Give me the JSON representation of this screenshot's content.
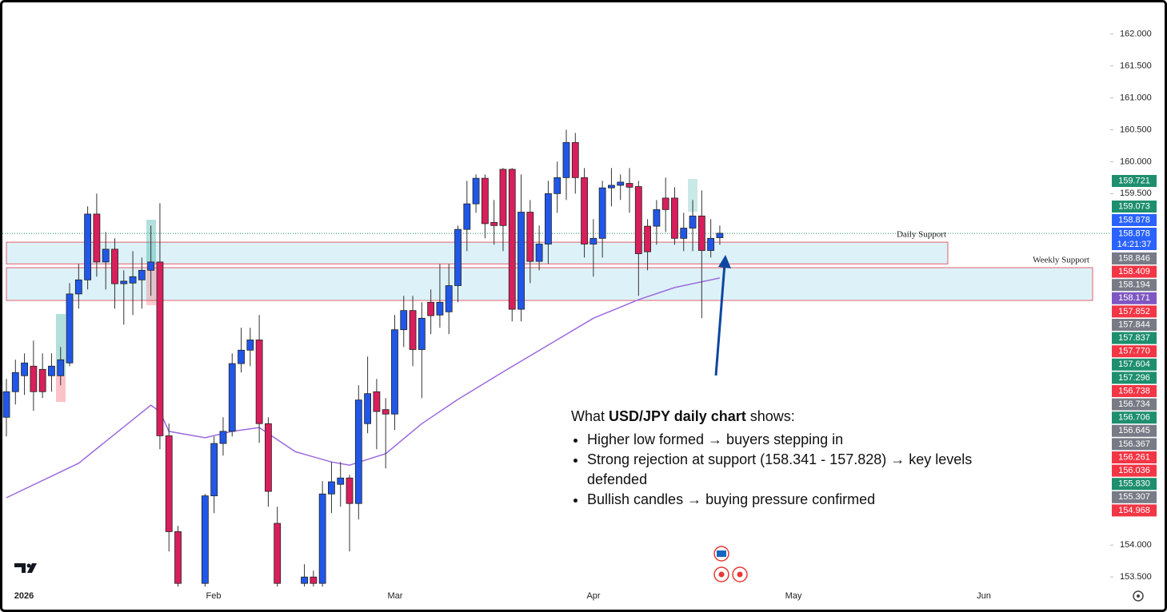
{
  "chart_data": {
    "type": "candlestick",
    "up_color": "#2157e8",
    "down_color": "#d81f5b",
    "ylim": [
      153.34,
      162.53
    ],
    "yticks": [
      {
        "value": 162,
        "label": "162.000"
      },
      {
        "value": 161.5,
        "label": "161.500"
      },
      {
        "value": 161,
        "label": "161.000"
      },
      {
        "value": 160.5,
        "label": "160.500"
      },
      {
        "value": 160,
        "label": "160.000"
      },
      {
        "value": 159.5,
        "label": "159.500"
      },
      {
        "value": 154,
        "label": "154.000"
      },
      {
        "value": 153.5,
        "label": "153.500"
      }
    ],
    "x_labels": [
      "2026",
      "Feb",
      "Mar",
      "Apr",
      "May",
      "Jun"
    ],
    "open": [
      156.0,
      156.4,
      156.65,
      156.8,
      156.75,
      156.65,
      156.65,
      156.85,
      157.93,
      158.15,
      159.18,
      158.43,
      158.63,
      158.09,
      158.1,
      158.15,
      158.3,
      158.43,
      155.71,
      154.21,
      null,
      null,
      153.4,
      154.77,
      155.59,
      155.78,
      156.84,
      157.05,
      157.21,
      155.9,
      154.34,
      null,
      null,
      153.4,
      153.5,
      153.4,
      154.8,
      154.95,
      155.05,
      154.65,
      155.9,
      156.4,
      156.12,
      156.05,
      157.37,
      157.67,
      157.06,
      157.8,
      157.6,
      157.65,
      158.06,
      158.94,
      159.34,
      159.74,
      159.05,
      159.88,
      159.88,
      157.69,
      159.21,
      158.44,
      158.71,
      159.5,
      159.75,
      160.3,
      159.75,
      158.71,
      158.8,
      159.59,
      159.63,
      159.66,
      159.61,
      158.99,
      158.99,
      159.43,
      159.43,
      158.8,
      158.96,
      159.15,
      158.61,
      158.81
    ],
    "high": [
      156.6,
      156.9,
      157.0,
      157.2,
      157.0,
      157.0,
      157.1,
      158.1,
      158.4,
      159.3,
      159.5,
      158.9,
      158.8,
      158.3,
      158.6,
      158.5,
      159.0,
      159.35,
      155.9,
      154.3,
      null,
      null,
      154.8,
      155.7,
      156.0,
      157.0,
      157.4,
      157.4,
      157.6,
      156.0,
      154.6,
      null,
      null,
      153.7,
      153.6,
      155.0,
      155.3,
      155.3,
      155.1,
      156.5,
      156.95,
      156.6,
      156.3,
      157.6,
      157.9,
      157.9,
      157.8,
      158.0,
      158.4,
      158.4,
      159.0,
      159.7,
      159.8,
      159.8,
      159.4,
      159.9,
      159.9,
      159.8,
      159.4,
      159.0,
      159.7,
      160.0,
      160.5,
      160.45,
      159.9,
      159.1,
      159.7,
      159.9,
      159.8,
      159.9,
      159.7,
      159.1,
      159.4,
      159.75,
      159.6,
      159.2,
      159.4,
      159.55,
      159.1,
      159.0
    ],
    "low": [
      155.7,
      156.2,
      156.35,
      156.1,
      156.3,
      156.4,
      156.5,
      156.8,
      157.7,
      158.0,
      158.2,
      158.0,
      157.7,
      157.45,
      157.6,
      157.7,
      157.9,
      155.5,
      153.9,
      153.35,
      null,
      null,
      153.35,
      154.5,
      155.4,
      155.7,
      156.7,
      156.8,
      155.6,
      154.6,
      153.35,
      null,
      null,
      153.35,
      153.35,
      153.35,
      154.5,
      154.6,
      153.9,
      154.4,
      155.75,
      155.5,
      155.2,
      155.8,
      157.1,
      156.8,
      156.3,
      157.3,
      157.4,
      157.3,
      157.8,
      158.6,
      159.2,
      158.8,
      158.7,
      158.6,
      157.5,
      157.5,
      158.1,
      158.3,
      158.4,
      159.2,
      159.4,
      159.5,
      158.5,
      158.2,
      158.5,
      159.3,
      159.4,
      159.2,
      157.9,
      158.3,
      158.7,
      158.9,
      158.7,
      158.6,
      158.6,
      157.55,
      158.5,
      158.7
    ],
    "close": [
      156.4,
      156.7,
      156.85,
      156.4,
      156.4,
      156.8,
      156.9,
      157.93,
      158.15,
      159.18,
      158.43,
      158.63,
      158.09,
      158.13,
      158.2,
      158.3,
      158.43,
      155.71,
      154.21,
      153.4,
      null,
      null,
      154.77,
      155.59,
      155.78,
      156.84,
      157.05,
      157.21,
      155.9,
      154.84,
      153.4,
      null,
      null,
      153.5,
      153.4,
      154.8,
      154.99,
      155.05,
      154.65,
      156.27,
      156.37,
      156.09,
      156.05,
      157.37,
      157.67,
      157.06,
      157.55,
      157.59,
      157.8,
      158.06,
      158.94,
      159.34,
      159.74,
      159.03,
      159.0,
      159.0,
      157.69,
      159.21,
      158.44,
      158.71,
      159.5,
      159.75,
      160.3,
      159.75,
      158.71,
      158.8,
      159.59,
      159.63,
      159.68,
      159.6,
      158.56,
      158.59,
      159.25,
      159.25,
      158.8,
      158.96,
      159.15,
      158.61,
      158.8,
      158.88
    ],
    "moving_average": {
      "color": "#9c6ade",
      "x": [
        0,
        8,
        16,
        17,
        18,
        22,
        25,
        28,
        32,
        36,
        38,
        42,
        46,
        50,
        55,
        60,
        65,
        70,
        74,
        79
      ],
      "values": [
        154.74,
        155.28,
        156.19,
        156.09,
        155.78,
        155.68,
        155.78,
        155.84,
        155.46,
        155.3,
        155.25,
        155.43,
        155.9,
        156.28,
        156.71,
        157.13,
        157.55,
        157.84,
        158.03,
        158.18
      ]
    },
    "zones": [
      {
        "label": "Daily Support",
        "top": 158.74,
        "bottom": 158.4
      },
      {
        "label": "Weekly Support",
        "top": 158.341,
        "bottom": 157.828
      }
    ],
    "price_labels": [
      {
        "value": 159.721,
        "label": "159.721",
        "color": "#1e8f6e"
      },
      {
        "value": 159.073,
        "label": "159.073",
        "color": "#1e8f6e"
      },
      {
        "value": 158.878,
        "label": "158.878",
        "color": "#2962ff"
      },
      {
        "value": 158.878,
        "label": "158.878",
        "color": "#2962ff",
        "time": "14:21:37"
      },
      {
        "value": 158.846,
        "label": "158.846",
        "color": "#787b86"
      },
      {
        "value": 158.409,
        "label": "158.409",
        "color": "#f23645"
      },
      {
        "value": 158.194,
        "label": "158.194",
        "color": "#787b86"
      },
      {
        "value": 158.171,
        "label": "158.171",
        "color": "#7e57c2"
      },
      {
        "value": 157.852,
        "label": "157.852",
        "color": "#f23645"
      },
      {
        "value": 157.844,
        "label": "157.844",
        "color": "#787b86"
      },
      {
        "value": 157.837,
        "label": "157.837",
        "color": "#1e8f6e"
      },
      {
        "value": 157.77,
        "label": "157.770",
        "color": "#f23645"
      },
      {
        "value": 157.604,
        "label": "157.604",
        "color": "#1e8f6e"
      },
      {
        "value": 157.296,
        "label": "157.296",
        "color": "#1e8f6e"
      },
      {
        "value": 156.738,
        "label": "156.738",
        "color": "#f23645"
      },
      {
        "value": 156.734,
        "label": "156.734",
        "color": "#787b86"
      },
      {
        "value": 156.706,
        "label": "156.706",
        "color": "#1e8f6e"
      },
      {
        "value": 156.645,
        "label": "156.645",
        "color": "#787b86"
      },
      {
        "value": 156.367,
        "label": "156.367",
        "color": "#787b86"
      },
      {
        "value": 156.261,
        "label": "156.261",
        "color": "#f23645"
      },
      {
        "value": 156.036,
        "label": "156.036",
        "color": "#f23645"
      },
      {
        "value": 155.83,
        "label": "155.830",
        "color": "#1e8f6e"
      },
      {
        "value": 155.307,
        "label": "155.307",
        "color": "#787b86"
      },
      {
        "value": 154.968,
        "label": "154.968",
        "color": "#f23645"
      }
    ],
    "annotation": {
      "prefix": "What ",
      "bold": "USD/JPY daily chart",
      "suffix": " shows:",
      "bullets": [
        "Higher low formed → buyers stepping in",
        "Strong rejection at support (158.341 - 157.828) → key levels defended",
        "Bullish candles → buying pressure confirmed"
      ]
    }
  }
}
